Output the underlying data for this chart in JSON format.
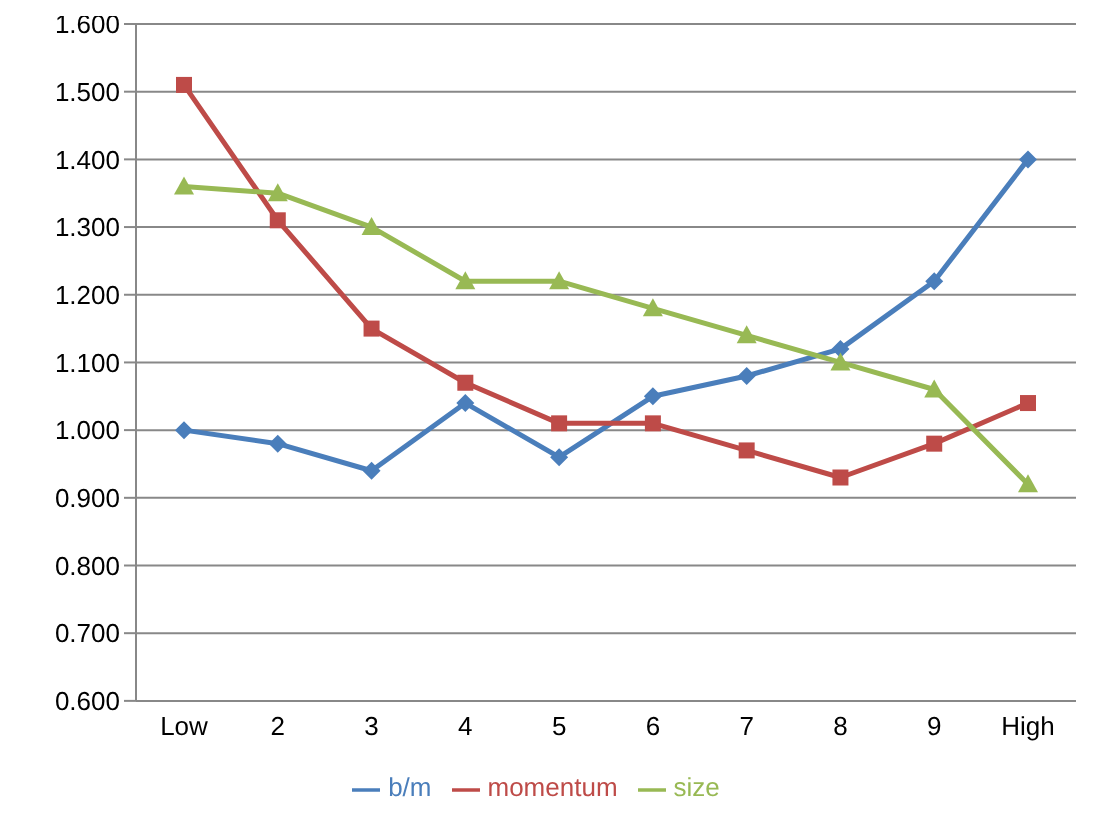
{
  "chart_data": {
    "type": "line",
    "categories": [
      "Low",
      "2",
      "3",
      "4",
      "5",
      "6",
      "7",
      "8",
      "9",
      "High"
    ],
    "series": [
      {
        "name": "b/m",
        "color": "#4a7ebb",
        "marker": "diamond",
        "values": [
          1.0,
          0.98,
          0.94,
          1.04,
          0.96,
          1.05,
          1.08,
          1.12,
          1.22,
          1.4
        ]
      },
      {
        "name": "momentum",
        "color": "#be4b48",
        "marker": "square",
        "values": [
          1.51,
          1.31,
          1.15,
          1.07,
          1.01,
          1.01,
          0.97,
          0.93,
          0.98,
          1.04
        ]
      },
      {
        "name": "size",
        "color": "#98b954",
        "marker": "triangle",
        "values": [
          1.36,
          1.35,
          1.3,
          1.22,
          1.22,
          1.18,
          1.14,
          1.1,
          1.06,
          0.92
        ]
      }
    ],
    "ylim": [
      0.6,
      1.6
    ],
    "yticks": [
      {
        "value": 0.6,
        "label": "0.600"
      },
      {
        "value": 0.7,
        "label": "0.700"
      },
      {
        "value": 0.8,
        "label": "0.800"
      },
      {
        "value": 0.9,
        "label": "0.900"
      },
      {
        "value": 1.0,
        "label": "1.000"
      },
      {
        "value": 1.1,
        "label": "1.100"
      },
      {
        "value": 1.2,
        "label": "1.200"
      },
      {
        "value": 1.3,
        "label": "1.300"
      },
      {
        "value": 1.4,
        "label": "1.400"
      },
      {
        "value": 1.5,
        "label": "1.500"
      },
      {
        "value": 1.6,
        "label": "1.600"
      }
    ],
    "grid": "y",
    "legend": "bottom",
    "line_style": "solid"
  }
}
